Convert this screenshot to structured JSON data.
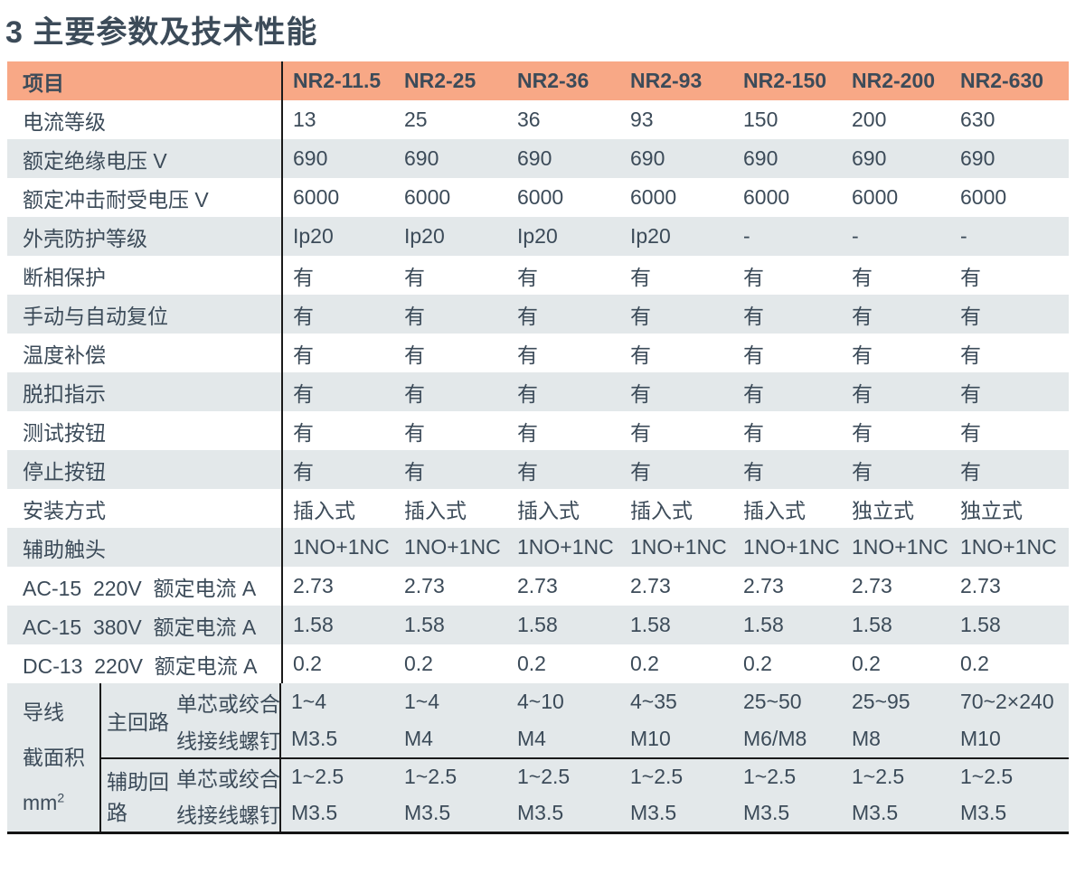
{
  "page_title": "3 主要参数及技术性能",
  "colors": {
    "header_bg": "#F8A886",
    "row_alt_bg": "#E3E8EA",
    "text": "#3C4B59",
    "border_line": "#1A1A1A"
  },
  "table": {
    "header": [
      "项目",
      "NR2-11.5",
      "NR2-25",
      "NR2-36",
      "NR2-93",
      "NR2-150",
      "NR2-200",
      "NR2-630"
    ],
    "rows": [
      {
        "label": "电流等级",
        "values": [
          "13",
          "25",
          "36",
          "93",
          "150",
          "200",
          "630"
        ]
      },
      {
        "label": "额定绝缘电压 V",
        "values": [
          "690",
          "690",
          "690",
          "690",
          "690",
          "690",
          "690"
        ]
      },
      {
        "label": "额定冲击耐受电压 V",
        "values": [
          "6000",
          "6000",
          "6000",
          "6000",
          "6000",
          "6000",
          "6000"
        ]
      },
      {
        "label": "外壳防护等级",
        "values": [
          "Ip20",
          "Ip20",
          "Ip20",
          "Ip20",
          "-",
          "-",
          "-"
        ]
      },
      {
        "label": "断相保护",
        "values": [
          "有",
          "有",
          "有",
          "有",
          "有",
          "有",
          "有"
        ]
      },
      {
        "label": "手动与自动复位",
        "values": [
          "有",
          "有",
          "有",
          "有",
          "有",
          "有",
          "有"
        ]
      },
      {
        "label": "温度补偿",
        "values": [
          "有",
          "有",
          "有",
          "有",
          "有",
          "有",
          "有"
        ]
      },
      {
        "label": "脱扣指示",
        "values": [
          "有",
          "有",
          "有",
          "有",
          "有",
          "有",
          "有"
        ]
      },
      {
        "label": "测试按钮",
        "values": [
          "有",
          "有",
          "有",
          "有",
          "有",
          "有",
          "有"
        ]
      },
      {
        "label": "停止按钮",
        "values": [
          "有",
          "有",
          "有",
          "有",
          "有",
          "有",
          "有"
        ]
      },
      {
        "label": "安装方式",
        "values": [
          "插入式",
          "插入式",
          "插入式",
          "插入式",
          "插入式",
          "独立式",
          "独立式"
        ]
      },
      {
        "label": "辅助触头",
        "values": [
          "1NO+1NC",
          "1NO+1NC",
          "1NO+1NC",
          "1NO+1NC",
          "1NO+1NC",
          "1NO+1NC",
          "1NO+1NC"
        ]
      },
      {
        "label": "AC-15  220V  额定电流 A",
        "values": [
          "2.73",
          "2.73",
          "2.73",
          "2.73",
          "2.73",
          "2.73",
          "2.73"
        ]
      },
      {
        "label": "AC-15  380V  额定电流 A",
        "values": [
          "1.58",
          "1.58",
          "1.58",
          "1.58",
          "1.58",
          "1.58",
          "1.58"
        ]
      },
      {
        "label": "DC-13  220V  额定电流 A",
        "values": [
          "0.2",
          "0.2",
          "0.2",
          "0.2",
          "0.2",
          "0.2",
          "0.2"
        ]
      }
    ],
    "wire_section": {
      "group_label": {
        "lines": [
          "导线",
          "截面积"
        ],
        "unit_base": "mm",
        "unit_sup": "2"
      },
      "subgroups": [
        {
          "name": "主回路",
          "rows": [
            {
              "label": "单芯或绞合",
              "values": [
                "1~4",
                "1~4",
                "4~10",
                "4~35",
                "25~50",
                "25~95",
                "70~2×240"
              ]
            },
            {
              "label": "线接线螺钉",
              "values": [
                "M3.5",
                "M4",
                "M4",
                "M10",
                "M6/M8",
                "M8",
                "M10"
              ]
            }
          ]
        },
        {
          "name": "辅助回路",
          "rows": [
            {
              "label": "单芯或绞合",
              "values": [
                "1~2.5",
                "1~2.5",
                "1~2.5",
                "1~2.5",
                "1~2.5",
                "1~2.5",
                "1~2.5"
              ]
            },
            {
              "label": "线接线螺钉",
              "values": [
                "M3.5",
                "M3.5",
                "M3.5",
                "M3.5",
                "M3.5",
                "M3.5",
                "M3.5"
              ]
            }
          ]
        }
      ]
    }
  }
}
